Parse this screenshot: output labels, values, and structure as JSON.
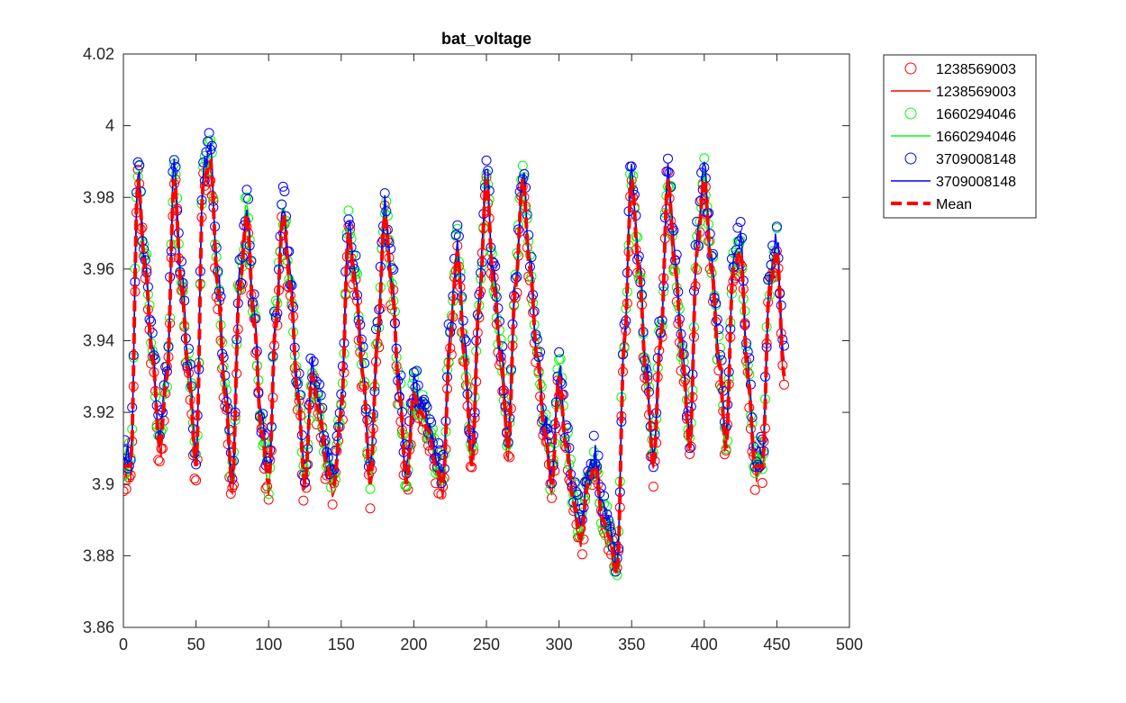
{
  "chart_data": {
    "type": "scatter",
    "title": "bat_voltage",
    "xlabel": "",
    "ylabel": "",
    "xlim": [
      0,
      500
    ],
    "ylim": [
      3.86,
      4.02
    ],
    "x_ticks": [
      0,
      50,
      100,
      150,
      200,
      250,
      300,
      350,
      400,
      450,
      500
    ],
    "y_ticks": [
      3.86,
      3.88,
      3.9,
      3.92,
      3.94,
      3.96,
      3.98,
      4.0,
      4.02
    ],
    "y_tick_labels": [
      "3.86",
      "3.88",
      "3.9",
      "3.92",
      "3.94",
      "3.96",
      "3.98",
      "4",
      "4.02"
    ],
    "grid": false,
    "legend_position": "outside-top-right",
    "mean_trace_x": [
      0,
      5,
      10,
      15,
      20,
      25,
      30,
      35,
      40,
      45,
      50,
      55,
      60,
      65,
      70,
      75,
      80,
      85,
      90,
      95,
      100,
      105,
      110,
      115,
      120,
      125,
      130,
      135,
      140,
      145,
      150,
      155,
      160,
      165,
      170,
      175,
      180,
      185,
      190,
      195,
      200,
      205,
      210,
      215,
      220,
      225,
      230,
      235,
      240,
      245,
      250,
      255,
      260,
      265,
      270,
      275,
      280,
      285,
      290,
      295,
      300,
      305,
      310,
      315,
      320,
      325,
      330,
      335,
      340,
      345,
      350,
      355,
      360,
      365,
      370,
      375,
      380,
      385,
      390,
      395,
      400,
      405,
      410,
      415,
      420,
      425,
      430,
      435,
      440,
      445,
      450,
      455
    ],
    "mean_trace_y": [
      3.905,
      3.905,
      3.985,
      3.96,
      3.935,
      3.91,
      3.93,
      3.985,
      3.955,
      3.93,
      3.905,
      3.985,
      3.99,
      3.955,
      3.925,
      3.9,
      3.955,
      3.975,
      3.945,
      3.915,
      3.9,
      3.945,
      3.975,
      3.955,
      3.925,
      3.9,
      3.93,
      3.92,
      3.905,
      3.9,
      3.92,
      3.97,
      3.955,
      3.93,
      3.9,
      3.94,
      3.975,
      3.955,
      3.925,
      3.9,
      3.925,
      3.92,
      3.915,
      3.905,
      3.9,
      3.94,
      3.965,
      3.935,
      3.905,
      3.95,
      3.985,
      3.955,
      3.935,
      3.91,
      3.955,
      3.985,
      3.96,
      3.935,
      3.915,
      3.9,
      3.93,
      3.91,
      3.895,
      3.885,
      3.9,
      3.905,
      3.89,
      3.885,
      3.875,
      3.94,
      3.985,
      3.96,
      3.93,
      3.905,
      3.94,
      3.985,
      3.96,
      3.935,
      3.91,
      3.965,
      3.985,
      3.96,
      3.935,
      3.91,
      3.96,
      3.965,
      3.93,
      3.905,
      3.905,
      3.955,
      3.965,
      3.93
    ],
    "series": [
      {
        "name": "1238569003",
        "color": "#ff0000",
        "marker": "circle",
        "offset": -0.002,
        "x_start": 0,
        "x_end": 455
      },
      {
        "name": "1238569003",
        "color": "#ff0000",
        "marker": "line",
        "offset": -0.0015,
        "x_start": 0,
        "x_end": 455
      },
      {
        "name": "1660294046",
        "color": "#00ff00",
        "marker": "circle",
        "offset": 0.002,
        "x_start": 0,
        "x_end": 450
      },
      {
        "name": "1660294046",
        "color": "#00ff00",
        "marker": "line",
        "offset": 0.0018,
        "x_start": 0,
        "x_end": 450
      },
      {
        "name": "3709008148",
        "color": "#0000ff",
        "marker": "circle",
        "offset": 0.004,
        "x_start": 0,
        "x_end": 455
      },
      {
        "name": "3709008148",
        "color": "#0000ff",
        "marker": "line",
        "offset": 0.003,
        "x_start": 0,
        "x_end": 455
      },
      {
        "name": "Mean",
        "color": "#ff0000",
        "marker": "dashed-line",
        "offset": 0,
        "x_start": 0,
        "x_end": 455
      }
    ]
  }
}
